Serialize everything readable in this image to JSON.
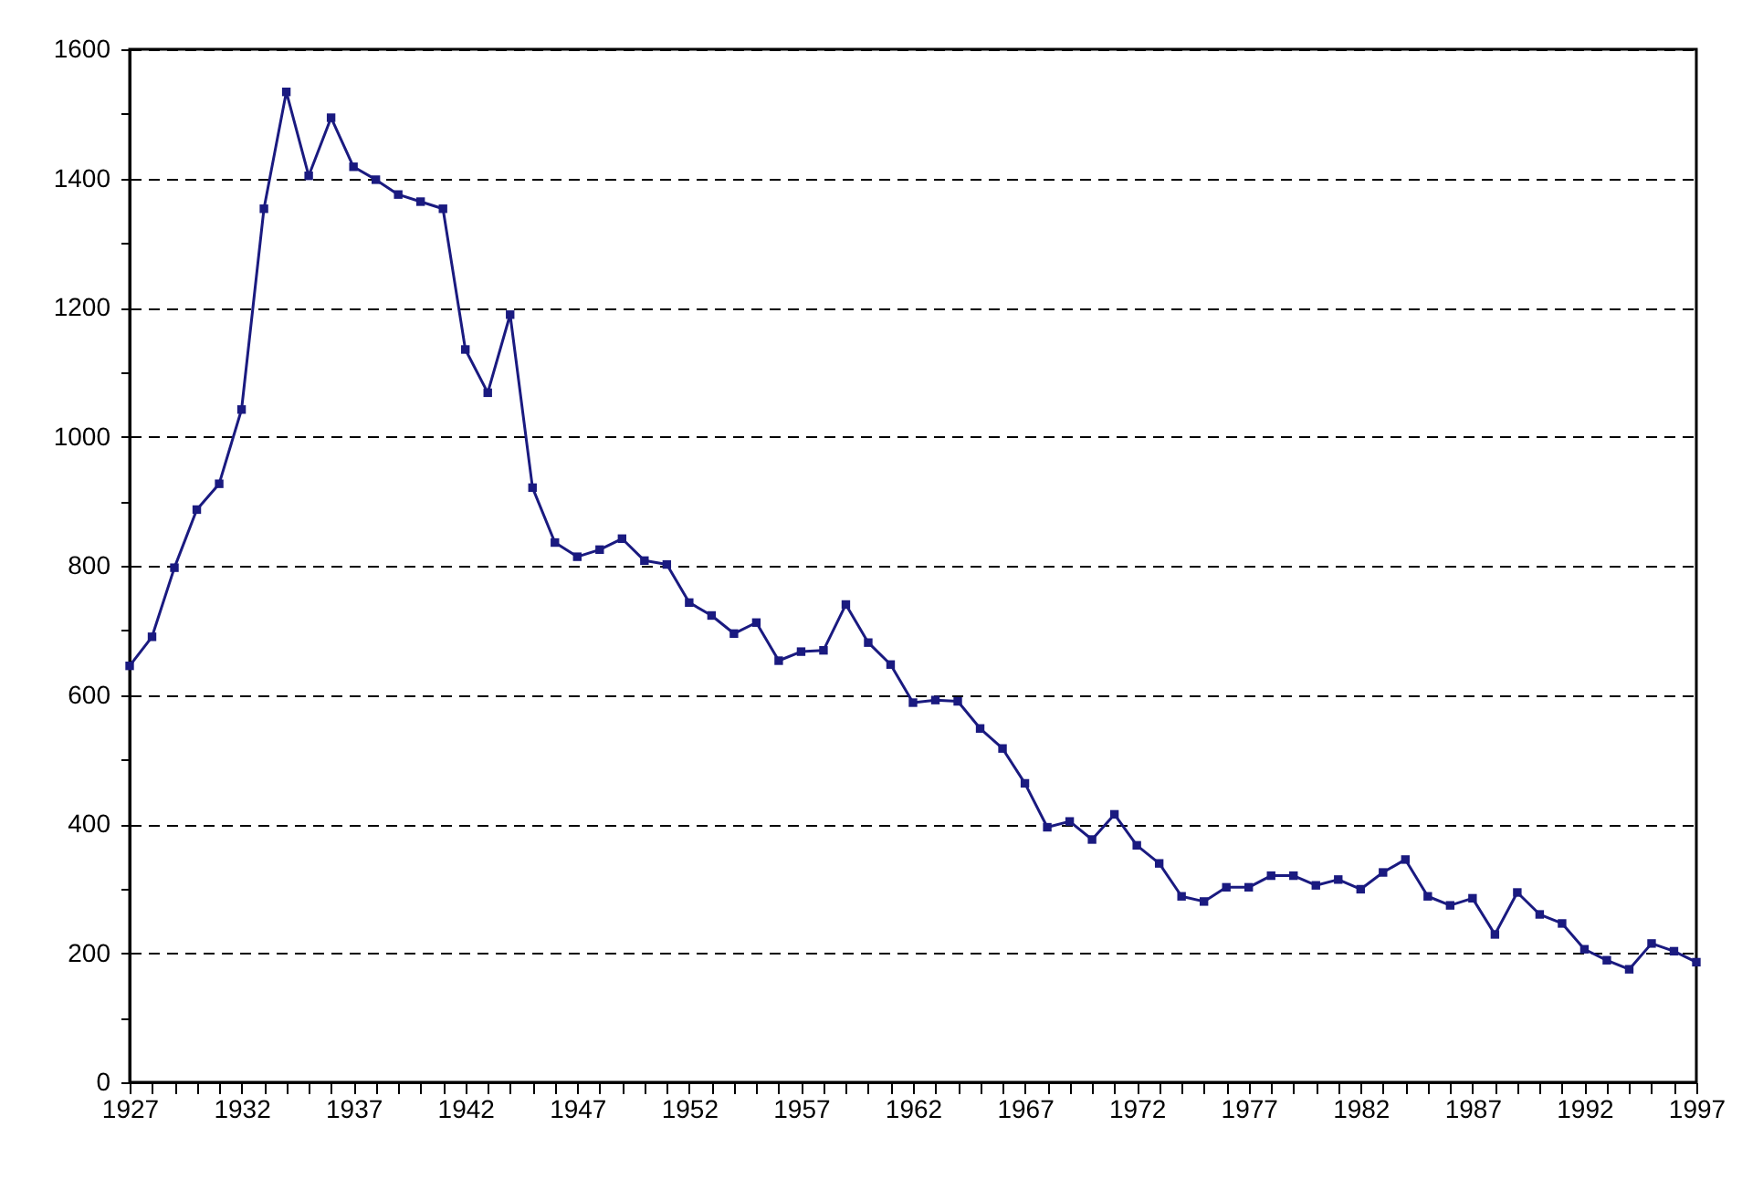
{
  "chart_data": {
    "type": "line",
    "x": [
      1927,
      1928,
      1929,
      1930,
      1931,
      1932,
      1933,
      1934,
      1935,
      1936,
      1937,
      1938,
      1939,
      1940,
      1941,
      1942,
      1943,
      1944,
      1945,
      1946,
      1947,
      1948,
      1949,
      1950,
      1951,
      1952,
      1953,
      1954,
      1955,
      1956,
      1957,
      1958,
      1959,
      1960,
      1961,
      1962,
      1963,
      1964,
      1965,
      1966,
      1967,
      1968,
      1969,
      1970,
      1971,
      1972,
      1973,
      1974,
      1975,
      1976,
      1977,
      1978,
      1979,
      1980,
      1981,
      1982,
      1983,
      1984,
      1985,
      1986,
      1987,
      1988,
      1989,
      1990,
      1991,
      1992,
      1993,
      1994,
      1995,
      1996,
      1997
    ],
    "series": [
      {
        "color": "#1a1a80",
        "values": [
          645,
          690,
          797,
          887,
          927,
          1042,
          1353,
          1534,
          1404,
          1494,
          1418,
          1398,
          1375,
          1364,
          1353,
          1135,
          1068,
          1189,
          921,
          836,
          814,
          825,
          842,
          808,
          802,
          743,
          723,
          695,
          712,
          653,
          667,
          669,
          740,
          681,
          647,
          588,
          592,
          590,
          548,
          517,
          463,
          395,
          404,
          376,
          415,
          367,
          339,
          288,
          280,
          302,
          302,
          320,
          320,
          305,
          314,
          299,
          325,
          345,
          288,
          274,
          285,
          229,
          294,
          260,
          246,
          206,
          189,
          175,
          215,
          203,
          186
        ]
      }
    ],
    "xlim": [
      1927,
      1997
    ],
    "xticks": [
      1927,
      {
        "value": 1928,
        "label": null
      },
      {
        "value": 1929,
        "label": null
      },
      {
        "value": 1930,
        "label": null
      },
      {
        "value": 1931,
        "label": null
      },
      1932,
      {
        "value": 1933,
        "label": null
      },
      {
        "value": 1934,
        "label": null
      },
      {
        "value": 1935,
        "label": null
      },
      {
        "value": 1936,
        "label": null
      },
      1937,
      {
        "value": 1938,
        "label": null
      },
      {
        "value": 1939,
        "label": null
      },
      {
        "value": 1940,
        "label": null
      },
      {
        "value": 1941,
        "label": null
      },
      1942,
      {
        "value": 1943,
        "label": null
      },
      {
        "value": 1944,
        "label": null
      },
      {
        "value": 1945,
        "label": null
      },
      {
        "value": 1946,
        "label": null
      },
      1947,
      {
        "value": 1948,
        "label": null
      },
      {
        "value": 1949,
        "label": null
      },
      {
        "value": 1950,
        "label": null
      },
      {
        "value": 1951,
        "label": null
      },
      1952,
      {
        "value": 1953,
        "label": null
      },
      {
        "value": 1954,
        "label": null
      },
      {
        "value": 1955,
        "label": null
      },
      {
        "value": 1956,
        "label": null
      },
      1957,
      {
        "value": 1958,
        "label": null
      },
      {
        "value": 1959,
        "label": null
      },
      {
        "value": 1960,
        "label": null
      },
      {
        "value": 1961,
        "label": null
      },
      1962,
      {
        "value": 1963,
        "label": null
      },
      {
        "value": 1964,
        "label": null
      },
      {
        "value": 1965,
        "label": null
      },
      {
        "value": 1966,
        "label": null
      },
      1967,
      {
        "value": 1968,
        "label": null
      },
      {
        "value": 1969,
        "label": null
      },
      {
        "value": 1970,
        "label": null
      },
      {
        "value": 1971,
        "label": null
      },
      1972,
      {
        "value": 1973,
        "label": null
      },
      {
        "value": 1974,
        "label": null
      },
      {
        "value": 1975,
        "label": null
      },
      {
        "value": 1976,
        "label": null
      },
      1977,
      {
        "value": 1978,
        "label": null
      },
      {
        "value": 1979,
        "label": null
      },
      {
        "value": 1980,
        "label": null
      },
      {
        "value": 1981,
        "label": null
      },
      1982,
      {
        "value": 1983,
        "label": null
      },
      {
        "value": 1984,
        "label": null
      },
      {
        "value": 1985,
        "label": null
      },
      {
        "value": 1986,
        "label": null
      },
      1987,
      {
        "value": 1988,
        "label": null
      },
      {
        "value": 1989,
        "label": null
      },
      {
        "value": 1990,
        "label": null
      },
      {
        "value": 1991,
        "label": null
      },
      1992,
      {
        "value": 1993,
        "label": null
      },
      {
        "value": 1994,
        "label": null
      },
      {
        "value": 1995,
        "label": null
      },
      {
        "value": 1996,
        "label": null
      },
      1997
    ],
    "ylim": [
      0,
      1600
    ],
    "yticks": [
      0,
      {
        "value": 100,
        "label": null
      },
      200,
      {
        "value": 300,
        "label": null
      },
      400,
      {
        "value": 500,
        "label": null
      },
      600,
      {
        "value": 700,
        "label": null
      },
      800,
      {
        "value": 900,
        "label": null
      },
      1000,
      {
        "value": 1100,
        "label": null
      },
      1200,
      {
        "value": 1300,
        "label": null
      },
      1400,
      {
        "value": 1500,
        "label": null
      },
      1600
    ],
    "grid": "y",
    "marker": "square"
  }
}
